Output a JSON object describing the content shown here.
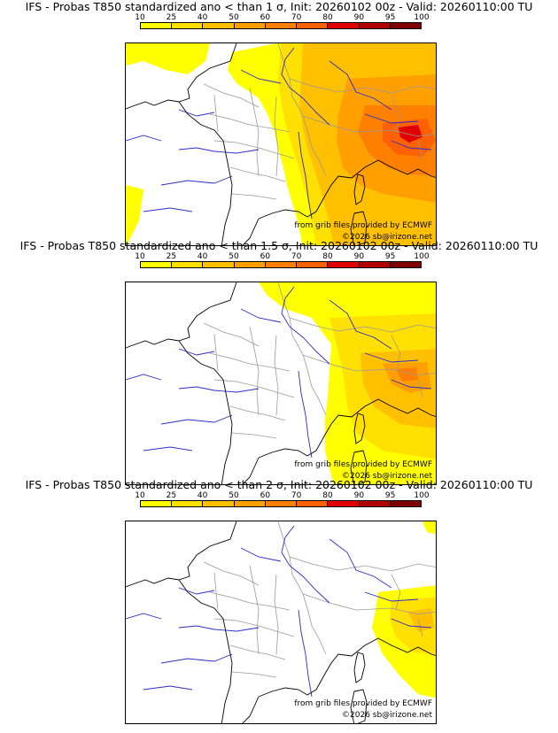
{
  "legend": {
    "labels": [
      "10",
      "25",
      "40",
      "50",
      "60",
      "70",
      "80",
      "90",
      "95",
      "100"
    ],
    "colors": [
      "#ffff00",
      "#ffe000",
      "#ffc000",
      "#ffa000",
      "#ff8000",
      "#ff6000",
      "#e00000",
      "#b00000",
      "#800000"
    ]
  },
  "panels": [
    {
      "title": "IFS - Probas T850  standardized ano < than 1 σ, Init: 20260102 00z - Valid: 20260110:00 TU",
      "source_credit": "from grib files provided by ECMWF",
      "copyright": "©2026 sb@irizone.net"
    },
    {
      "title": "IFS - Probas T850  standardized ano < than 1.5 σ, Init: 20260102 00z - Valid: 20260110:00 TU",
      "source_credit": "from grib files provided by ECMWF",
      "copyright": "©2026 sb@irizone.net"
    },
    {
      "title": "IFS - Probas T850  standardized ano < than 2 σ, Init: 20260102 00z - Valid: 20260110:00 TU",
      "source_credit": "from grib files provided by ECMWF",
      "copyright": "©2026 sb@irizone.net"
    }
  ],
  "colors": {
    "coastline": "#000000",
    "rivers": "#2b2bcc",
    "borders": "#9a9a9a"
  }
}
